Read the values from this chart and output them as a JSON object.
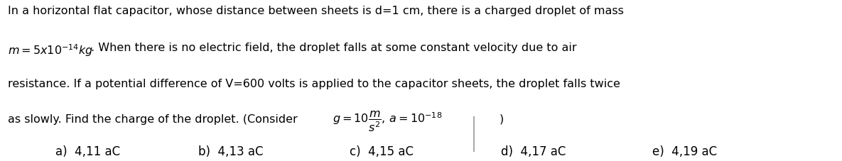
{
  "figsize": [
    11.85,
    2.27
  ],
  "dpi": 100,
  "background_color": "#ffffff",
  "line1": "In a horizontal flat capacitor, whose distance between sheets is d=1 cm, there is a charged droplet of mass",
  "line2_plain": ". When there is no electric field, the droplet falls at some constant velocity due to air",
  "line3": "resistance. If a potential difference of V=600 volts is applied to the capacitor sheets, the droplet falls twice",
  "line4_plain_start": "as slowly. Find the charge of the droplet. (Consider ",
  "line4_plain_end": ")",
  "answers": [
    "a)  4,11 aC",
    "b)  4,13 aC",
    "c)  4,15 aC",
    "d)  4,17 aC",
    "e)  4,19 aC"
  ],
  "font_size_main": 11.5,
  "font_size_answers": 12.0,
  "text_color": "#000000",
  "divider_color": "#aaaaaa"
}
